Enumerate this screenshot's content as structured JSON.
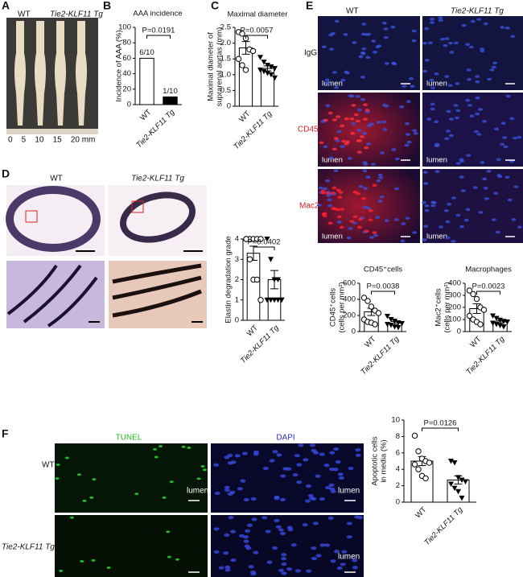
{
  "panels": {
    "A": {
      "letter": "A",
      "labels": [
        "WT",
        "Tie2-KLF11 Tg"
      ],
      "scale": "0    5    10    15    20 mm"
    },
    "B": {
      "letter": "B"
    },
    "C": {
      "letter": "C"
    },
    "D": {
      "letter": "D",
      "labels": [
        "WT",
        "Tie2-KLF11 Tg"
      ]
    },
    "E": {
      "letter": "E",
      "columns": [
        "WT",
        "Tie2-KLF11 Tg"
      ],
      "rows": [
        "IgG",
        "CD45",
        "Mac2"
      ],
      "lumen": "lumen"
    },
    "F": {
      "letter": "F",
      "columns": [
        "TUNEL",
        "DAPI"
      ],
      "rows": [
        "WT",
        "Tie2-KLF11 Tg"
      ],
      "lumen": "lumen"
    }
  },
  "chart_data": [
    {
      "type": "bar",
      "title": "AAA incidence",
      "y_label": [
        "Incidence of AAA (%)"
      ],
      "categories": [
        "WT",
        "Tie2-KLF11 Tg"
      ],
      "values": [
        60,
        10
      ],
      "value_labels": [
        "6/10",
        "1/10"
      ],
      "colors": [
        "#ffffff",
        "#000000"
      ],
      "annotation": "P=0.0191",
      "ylim": [
        0,
        100
      ],
      "yticks": [
        0,
        20,
        40,
        60,
        80,
        100
      ]
    },
    {
      "type": "bar",
      "title": "Maximal diameter",
      "y_label": [
        "Maximal diameter of",
        "suprarenal aortas (mm)"
      ],
      "categories": [
        "WT",
        "Tie2-KLF11 Tg"
      ],
      "values": [
        1.85,
        1.2
      ],
      "errors": [
        0.2,
        0.08
      ],
      "colors": [
        "#ffffff",
        "#ffffff"
      ],
      "annotation": "P=0.0057",
      "points": [
        [
          2.35,
          2.3,
          2.15,
          1.8,
          1.75,
          1.5,
          1.3,
          1.15
        ],
        [
          1.55,
          1.4,
          1.3,
          1.25,
          1.2,
          1.15,
          1.1,
          1.05,
          1.0,
          0.9
        ]
      ],
      "ylim": [
        0,
        2.5
      ],
      "yticks": [
        0,
        0.5,
        {
          "value": 1,
          "label": "1.0"
        },
        1.5,
        {
          "value": 2,
          "label": "2.0"
        },
        2.5
      ]
    },
    {
      "type": "bar",
      "y_label": [
        "Elastin degradation grade"
      ],
      "categories": [
        "WT",
        "Tie2-KLF11 Tg"
      ],
      "values": [
        3.3,
        2.0
      ],
      "errors": [
        0.35,
        0.45
      ],
      "colors": [
        "#ffffff",
        "#ffffff"
      ],
      "annotation": "P=0.0402",
      "points": [
        [
          4,
          4,
          4,
          4,
          4,
          4,
          3,
          2,
          2,
          1
        ],
        [
          4,
          3,
          2,
          2,
          1,
          1,
          1,
          1,
          1,
          1
        ]
      ],
      "ylim": [
        0,
        4
      ],
      "yticks": [
        0,
        1,
        2,
        3,
        4
      ]
    },
    {
      "type": "bar",
      "title": "CD45⁺cells",
      "y_label": [
        "CD45⁺cells",
        "(cells per mm²)"
      ],
      "categories": [
        "WT",
        "Tie2-KLF11 Tg"
      ],
      "values": [
        245,
        105
      ],
      "errors": [
        45,
        20
      ],
      "colors": [
        "#ffffff",
        "#ffffff"
      ],
      "annotation": "P=0.0038",
      "points": [
        [
          420,
          380,
          310,
          260,
          230,
          150,
          120,
          110,
          90
        ],
        [
          190,
          150,
          130,
          110,
          100,
          90,
          80,
          60,
          50
        ]
      ],
      "ylim": [
        0,
        600
      ],
      "yticks": [
        0,
        200,
        400,
        600
      ]
    },
    {
      "type": "bar",
      "title": "Macrophages",
      "y_label": [
        "Mac2⁺cells",
        "(cells per mm²)"
      ],
      "categories": [
        "WT",
        "Tie2-KLF11 Tg"
      ],
      "values": [
        190,
        80
      ],
      "errors": [
        40,
        12
      ],
      "colors": [
        "#ffffff",
        "#ffffff"
      ],
      "annotation": "P=0.0023",
      "points": [
        [
          340,
          310,
          270,
          200,
          180,
          130,
          100,
          80,
          60
        ],
        [
          130,
          110,
          95,
          85,
          80,
          70,
          60,
          50,
          40
        ]
      ],
      "ylim": [
        0,
        400
      ],
      "yticks": [
        0,
        100,
        200,
        300,
        400
      ]
    },
    {
      "type": "bar",
      "y_label": [
        "Apoptotic cells",
        "in media (%)"
      ],
      "categories": [
        "WT",
        "Tie2-KLF11 Tg"
      ],
      "values": [
        5.0,
        2.7
      ],
      "errors": [
        0.55,
        0.5
      ],
      "colors": [
        "#ffffff",
        "#ffffff"
      ],
      "annotation": "P=0.0126",
      "points": [
        [
          8.1,
          6.2,
          5.3,
          5.0,
          4.8,
          4.6,
          4.0,
          3.2,
          2.9
        ],
        [
          5.0,
          4.8,
          3.0,
          2.7,
          2.5,
          2.2,
          1.7,
          1.3,
          0.5
        ]
      ],
      "ylim": [
        0,
        10
      ],
      "yticks": [
        0,
        2,
        4,
        6,
        8,
        10
      ]
    }
  ]
}
